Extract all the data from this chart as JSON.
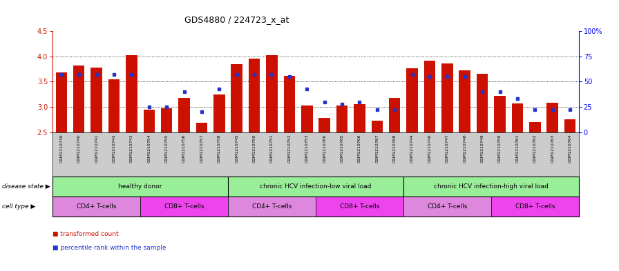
{
  "title": "GDS4880 / 224723_x_at",
  "samples": [
    "GSM1210739",
    "GSM1210740",
    "GSM1210741",
    "GSM1210742",
    "GSM1210743",
    "GSM1210754",
    "GSM1210755",
    "GSM1210756",
    "GSM1210757",
    "GSM1210758",
    "GSM1210745",
    "GSM1210750",
    "GSM1210751",
    "GSM1210752",
    "GSM1210753",
    "GSM1210760",
    "GSM1210765",
    "GSM1210766",
    "GSM1210767",
    "GSM1210768",
    "GSM1210744",
    "GSM1210746",
    "GSM1210747",
    "GSM1210748",
    "GSM1210749",
    "GSM1210759",
    "GSM1210761",
    "GSM1210762",
    "GSM1210763",
    "GSM1210764"
  ],
  "transformed_count": [
    3.68,
    3.82,
    3.78,
    3.55,
    4.02,
    2.95,
    2.97,
    3.17,
    2.68,
    3.25,
    3.85,
    3.95,
    4.02,
    3.62,
    3.02,
    2.78,
    3.02,
    3.05,
    2.72,
    3.18,
    3.77,
    3.92,
    3.86,
    3.72,
    3.65,
    3.22,
    3.07,
    2.7,
    3.08,
    2.75
  ],
  "percentile_rank": [
    57,
    57,
    57,
    57,
    57,
    25,
    25,
    40,
    20,
    43,
    57,
    57,
    57,
    55,
    43,
    30,
    28,
    30,
    22,
    22,
    57,
    55,
    55,
    55,
    40,
    40,
    33,
    22,
    22,
    22
  ],
  "ymin": 2.5,
  "ymax": 4.5,
  "bar_color": "#cc1100",
  "dot_color": "#2233cc",
  "ds_groups": [
    {
      "label": "healthy donor",
      "start": 0,
      "end": 10
    },
    {
      "label": "chronic HCV infection-low viral load",
      "start": 10,
      "end": 20
    },
    {
      "label": "chronic HCV infection-high viral load",
      "start": 20,
      "end": 30
    }
  ],
  "ct_groups": [
    {
      "label": "CD4+ T-cells",
      "start": 0,
      "end": 5,
      "color": "#dd88dd"
    },
    {
      "label": "CD8+ T-cells",
      "start": 5,
      "end": 10,
      "color": "#ee44ee"
    },
    {
      "label": "CD4+ T-cells",
      "start": 10,
      "end": 15,
      "color": "#dd88dd"
    },
    {
      "label": "CD8+ T-cells",
      "start": 15,
      "end": 20,
      "color": "#ee44ee"
    },
    {
      "label": "CD4+ T-cells",
      "start": 20,
      "end": 25,
      "color": "#dd88dd"
    },
    {
      "label": "CD8+ T-cells",
      "start": 25,
      "end": 30,
      "color": "#ee44ee"
    }
  ],
  "ds_bg": "#99ee99",
  "plot_bg": "#ffffff",
  "xtick_bg": "#cccccc",
  "legend_bar_label": "transformed count",
  "legend_dot_label": "percentile rank within the sample",
  "ds_label": "disease state",
  "ct_label": "cell type"
}
